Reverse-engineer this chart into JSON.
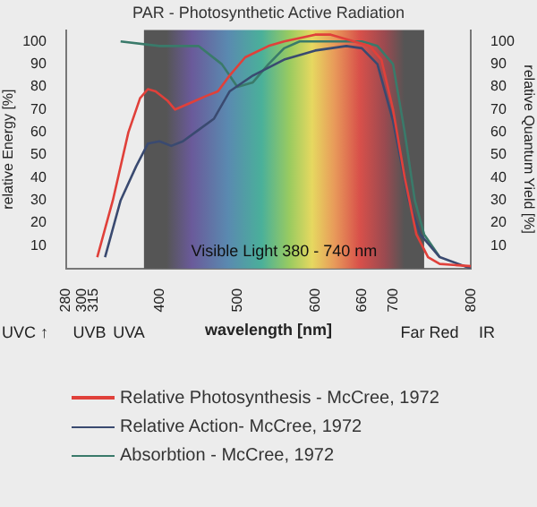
{
  "chart_data": {
    "type": "line",
    "title": "PAR - Photosynthetic Active Radiation",
    "xlabel": "wavelength [nm]",
    "ylabel": "relative Energy [%]",
    "y2label": "relative Quantum Yield [%]",
    "x": [
      320,
      340,
      360,
      375,
      385,
      395,
      410,
      420,
      440,
      460,
      475,
      490,
      510,
      540,
      560,
      600,
      620,
      650,
      670,
      685,
      700,
      715,
      730,
      745,
      760,
      800
    ],
    "series": [
      {
        "name": "Relative Photosynthesis - McCree, 1972",
        "color": "#e0403a",
        "values": [
          5,
          30,
          60,
          75,
          79,
          78,
          74,
          70,
          73,
          76,
          78,
          85,
          93,
          98,
          100,
          103,
          103,
          100,
          98,
          92,
          70,
          40,
          15,
          5,
          2,
          1
        ]
      },
      {
        "name": "Relative Action- McCree, 1972",
        "color": "#3a4a70",
        "x": [
          330,
          350,
          370,
          385,
          400,
          415,
          430,
          450,
          470,
          490,
          520,
          560,
          600,
          640,
          660,
          680,
          700,
          720,
          735,
          760,
          800
        ],
        "values": [
          5,
          30,
          45,
          55,
          56,
          54,
          56,
          61,
          66,
          78,
          85,
          92,
          96,
          98,
          97,
          90,
          65,
          30,
          15,
          5,
          0
        ]
      },
      {
        "name": "Absorbtion - McCree, 1972",
        "color": "#3a7a6a",
        "x": [
          350,
          400,
          450,
          480,
          500,
          520,
          540,
          560,
          580,
          620,
          660,
          680,
          700,
          715,
          728,
          740,
          760
        ],
        "values": [
          100,
          98,
          98,
          90,
          80,
          82,
          90,
          97,
          100,
          100,
          100,
          98,
          90,
          60,
          30,
          15,
          5
        ]
      }
    ],
    "xlim": [
      280,
      800
    ],
    "xticks": [
      280,
      300,
      315,
      400,
      500,
      600,
      660,
      700,
      800
    ],
    "ylim": [
      0,
      105
    ],
    "yticks": [
      10,
      20,
      30,
      40,
      50,
      60,
      70,
      80,
      90,
      100
    ],
    "y2lim": [
      0,
      105
    ],
    "y2ticks": [
      10,
      20,
      30,
      40,
      50,
      60,
      70,
      80,
      90,
      100
    ],
    "bands": [
      {
        "axis": "x",
        "from": 380,
        "to": 740,
        "label": "Visible Light 380 - 740 nm",
        "color": "#555555"
      }
    ],
    "annotations": [
      "UVC ↑",
      "UVB",
      "UVA",
      "Far Red",
      "IR"
    ],
    "legend": "bottom",
    "grid": false,
    "marker": "none",
    "line_style": "solid"
  }
}
